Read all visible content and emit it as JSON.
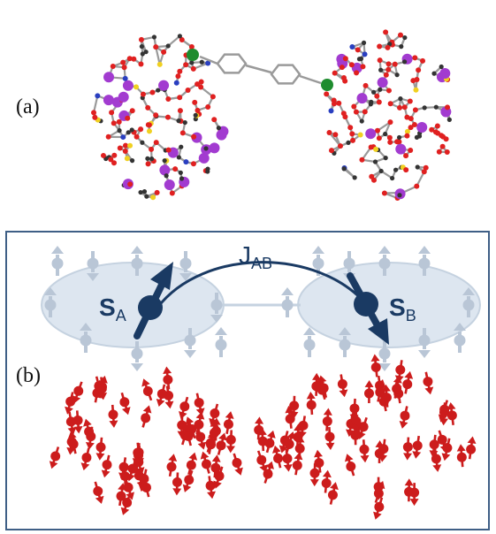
{
  "panels": [
    {
      "label": "(a)"
    },
    {
      "label": "(b)"
    }
  ],
  "coupling": {
    "main": "J",
    "sub": "AB"
  },
  "spins": [
    {
      "main": "S",
      "sub": "A"
    },
    {
      "main": "S",
      "sub": "B"
    }
  ],
  "colors": {
    "frame": "#3f5f86",
    "cluster_spin": "#1a3a63",
    "shell": "#dde6f0",
    "shell_spin": "#b9c6d6",
    "environment_spin": "#cc1c1c",
    "bond": "#9a9a9a",
    "oxygen": "#e02020",
    "metal": "#a23bd0",
    "carbon": "#333333",
    "sulfur": "#f0d020",
    "nitrogen": "#2a3fc0",
    "central_metal": "#1e8c2e"
  }
}
